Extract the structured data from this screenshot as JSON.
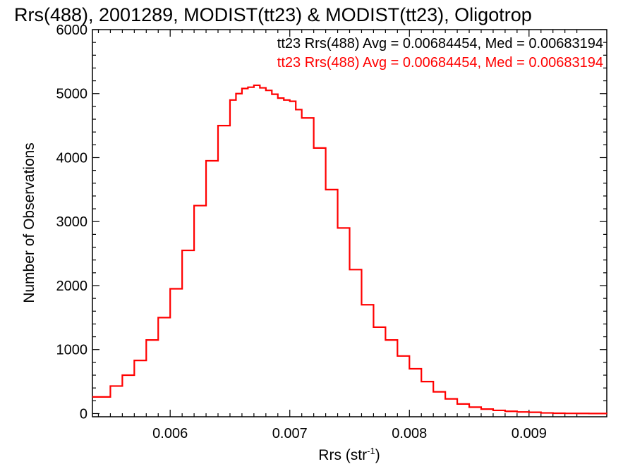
{
  "chart_data": {
    "type": "line",
    "title": "Rrs(488), 2001289, MODIST(tt23) & MODIST(tt23), Oligotrop",
    "xlabel": "Rrs (str",
    "xlabel_superscript": "-1",
    "xlabel_suffix": ")",
    "ylabel": "Number of Observations",
    "xlim": [
      0.00535,
      0.00965
    ],
    "ylim": [
      -50,
      6000
    ],
    "x_ticks": [
      0.006,
      0.007,
      0.008,
      0.009
    ],
    "x_tick_labels": [
      "0.006",
      "0.007",
      "0.008",
      "0.009"
    ],
    "y_ticks": [
      0,
      1000,
      2000,
      3000,
      4000,
      5000,
      6000
    ],
    "y_tick_labels": [
      "0",
      "1000",
      "2000",
      "3000",
      "4000",
      "5000",
      "6000"
    ],
    "grid": false,
    "annotations": [
      {
        "text": "tt23 Rrs(488) Avg = 0.00684454, Med = 0.00683194",
        "color": "#000000"
      },
      {
        "text": "tt23 Rrs(488) Avg = 0.00684454, Med = 0.00683194",
        "color": "#ff0000"
      }
    ],
    "series": [
      {
        "color": "#ff0000",
        "style": "step",
        "x": [
          0.00535,
          0.0055,
          0.0056,
          0.0057,
          0.0058,
          0.0059,
          0.006,
          0.0061,
          0.0062,
          0.0063,
          0.0064,
          0.0065,
          0.00655,
          0.0066,
          0.00665,
          0.0067,
          0.00675,
          0.0068,
          0.00685,
          0.0069,
          0.00695,
          0.007,
          0.00705,
          0.0071,
          0.0072,
          0.0073,
          0.0074,
          0.0075,
          0.0076,
          0.0077,
          0.0078,
          0.0079,
          0.008,
          0.0081,
          0.0082,
          0.0083,
          0.0084,
          0.0085,
          0.0086,
          0.0087,
          0.0088,
          0.0089,
          0.009,
          0.0091,
          0.0092,
          0.0093,
          0.0094,
          0.0095,
          0.00965
        ],
        "values": [
          260,
          430,
          600,
          830,
          1150,
          1500,
          1950,
          2550,
          3250,
          3950,
          4500,
          4900,
          5000,
          5080,
          5100,
          5130,
          5090,
          5050,
          4990,
          4930,
          4900,
          4880,
          4750,
          4620,
          4150,
          3500,
          2900,
          2250,
          1700,
          1350,
          1150,
          900,
          700,
          500,
          340,
          230,
          150,
          100,
          70,
          50,
          35,
          25,
          20,
          10,
          5,
          3,
          2,
          1,
          0
        ]
      }
    ]
  }
}
